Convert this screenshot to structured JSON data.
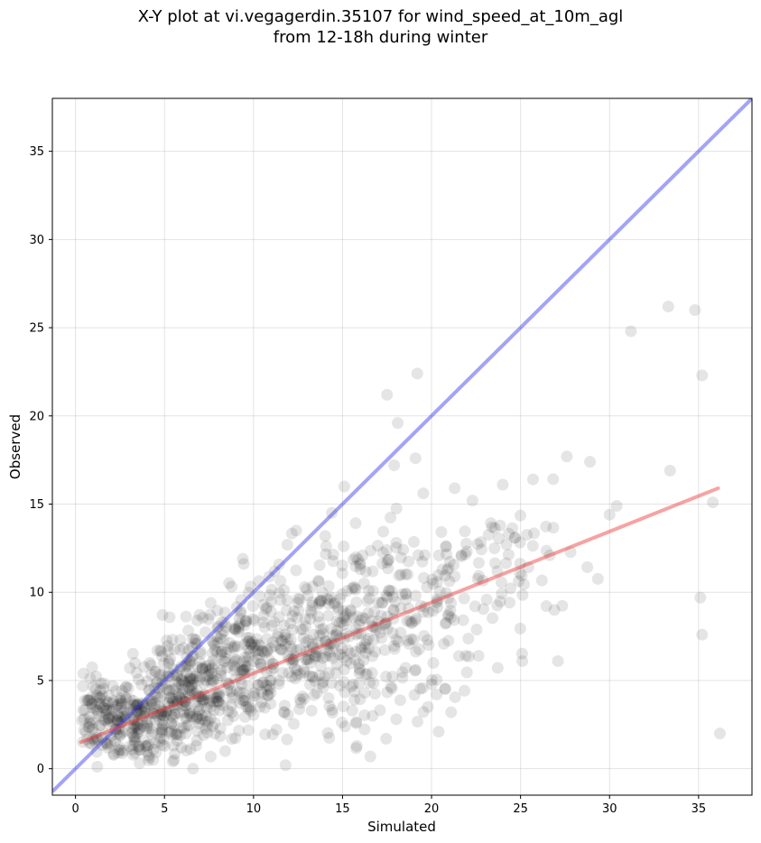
{
  "chart_data": {
    "type": "scatter",
    "title_line1": "X-Y plot at vi.vegagerdin.35107 for wind_speed_at_10m_agl",
    "title_line2": "from 12-18h during winter",
    "xlabel": "Simulated",
    "ylabel": "Observed",
    "xlim": [
      -1.3,
      38
    ],
    "ylim": [
      -1.5,
      38
    ],
    "xticks": [
      0,
      5,
      10,
      15,
      20,
      25,
      30,
      35
    ],
    "yticks": [
      0,
      5,
      10,
      15,
      20,
      25,
      30,
      35
    ],
    "xtick_labels": [
      "0",
      "5",
      "10",
      "15",
      "20",
      "25",
      "30",
      "35"
    ],
    "ytick_labels": [
      "0",
      "5",
      "10",
      "15",
      "20",
      "25",
      "30",
      "35"
    ],
    "grid": true,
    "point_color": "#000000",
    "identity_line": {
      "color": "#3333ee",
      "from": [
        -1.3,
        -1.3
      ],
      "to": [
        38,
        38
      ]
    },
    "fit_line": {
      "color": "#ee3333",
      "from": [
        0.3,
        1.5
      ],
      "to": [
        36.1,
        15.9
      ]
    },
    "outliers": [
      [
        33.3,
        26.2
      ],
      [
        34.8,
        26.0
      ],
      [
        31.2,
        24.8
      ],
      [
        35.2,
        22.3
      ],
      [
        19.2,
        22.4
      ],
      [
        17.5,
        21.2
      ],
      [
        18.1,
        19.6
      ],
      [
        17.9,
        17.2
      ],
      [
        19.1,
        17.6
      ],
      [
        27.6,
        17.7
      ],
      [
        28.9,
        17.4
      ],
      [
        33.4,
        16.9
      ],
      [
        25.7,
        16.4
      ],
      [
        35.8,
        15.1
      ],
      [
        30.4,
        14.9
      ],
      [
        30.0,
        14.4
      ],
      [
        35.1,
        9.7
      ],
      [
        35.2,
        7.6
      ],
      [
        36.2,
        2.0
      ],
      [
        27.1,
        6.1
      ],
      [
        25.1,
        6.1
      ],
      [
        26.9,
        9.0
      ],
      [
        21.3,
        15.9
      ],
      [
        22.3,
        15.2
      ],
      [
        24.0,
        16.1
      ],
      [
        15.1,
        16.0
      ],
      [
        14.4,
        14.5
      ],
      [
        12.4,
        13.5
      ],
      [
        11.9,
        12.7
      ],
      [
        21.1,
        3.2
      ],
      [
        20.4,
        2.1
      ],
      [
        19.8,
        3.5
      ],
      [
        11.8,
        0.2
      ],
      [
        6.6,
        0.0
      ],
      [
        9.4,
        11.9
      ]
    ],
    "cloud_clusters": [
      {
        "center": [
          1.5,
          3.0
        ],
        "spread": [
          0.9,
          1.1
        ],
        "count": 120
      },
      {
        "center": [
          3.5,
          2.5
        ],
        "spread": [
          1.2,
          1.3
        ],
        "count": 130
      },
      {
        "center": [
          5.5,
          3.8
        ],
        "spread": [
          1.4,
          1.5
        ],
        "count": 150
      },
      {
        "center": [
          7.5,
          4.8
        ],
        "spread": [
          1.5,
          1.7
        ],
        "count": 170
      },
      {
        "center": [
          10.0,
          6.2
        ],
        "spread": [
          1.8,
          2.2
        ],
        "count": 160
      },
      {
        "center": [
          12.8,
          7.0
        ],
        "spread": [
          2.0,
          2.4
        ],
        "count": 150
      },
      {
        "center": [
          15.5,
          7.5
        ],
        "spread": [
          2.1,
          2.6
        ],
        "count": 140
      },
      {
        "center": [
          18.5,
          8.5
        ],
        "spread": [
          2.0,
          2.6
        ],
        "count": 110
      },
      {
        "center": [
          21.5,
          10.0
        ],
        "spread": [
          1.8,
          2.5
        ],
        "count": 70
      },
      {
        "center": [
          25.0,
          12.0
        ],
        "spread": [
          1.6,
          1.7
        ],
        "count": 35
      }
    ]
  }
}
